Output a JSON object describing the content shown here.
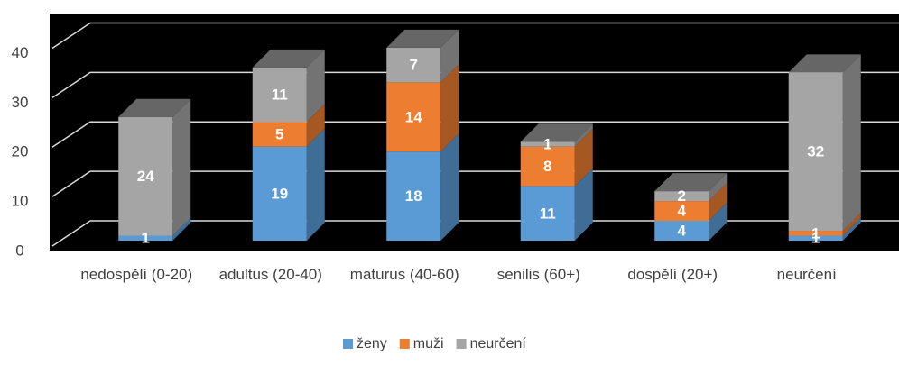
{
  "chart_data": {
    "type": "bar3d_stacked",
    "categories": [
      "nedospělí (0-20)",
      "adultus  (20-40)",
      "maturus (40-60)",
      "senilis (60+)",
      "dospělí (20+)",
      "neurčení"
    ],
    "series": [
      {
        "name": "ženy",
        "color": "#5b9bd5",
        "values": [
          1,
          19,
          18,
          11,
          4,
          1
        ]
      },
      {
        "name": "muži",
        "color": "#ed7d31",
        "values": [
          0,
          5,
          14,
          8,
          4,
          1
        ]
      },
      {
        "name": "neurčení",
        "color": "#a5a5a5",
        "values": [
          24,
          11,
          7,
          1,
          2,
          32
        ]
      }
    ],
    "ylim": [
      0,
      45
    ],
    "yticks": [
      0,
      10,
      20,
      30,
      40
    ],
    "grid": true,
    "legend": "bottom"
  }
}
